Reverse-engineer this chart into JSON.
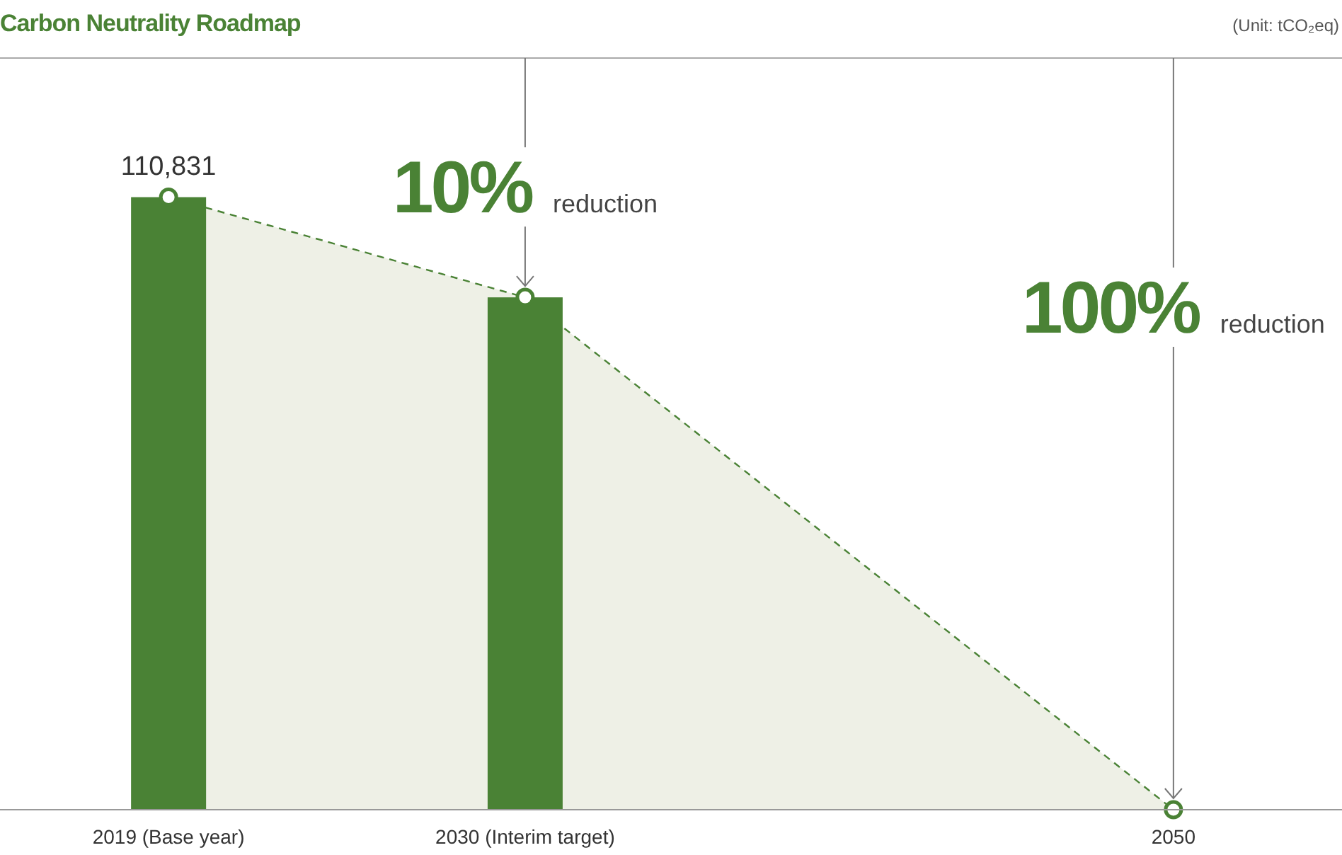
{
  "chart_data": {
    "type": "bar",
    "title": "Carbon Neutrality Roadmap",
    "subtitle": "(Unit: tCO₂eq)",
    "x": [
      2019,
      2030,
      2050
    ],
    "xlim": [
      2013.8,
      2055.2
    ],
    "xticks": [
      {
        "value": 2019,
        "label": "2019 (Base year)"
      },
      {
        "value": 2030,
        "label": "2030 (Interim target)"
      },
      {
        "value": 2050,
        "label": "2050"
      }
    ],
    "ylim": [
      0,
      136000
    ],
    "tick_labels": "x",
    "series": [
      {
        "color": "#4a8235",
        "values": [
          110831,
          92700,
          null
        ],
        "value_labels": [
          "110,831",
          null,
          null
        ]
      },
      {
        "type": "area",
        "color": "#4a8235",
        "values": [
          110831,
          92700,
          0
        ],
        "line_style": "dashed",
        "marker": "circle"
      }
    ],
    "annotations": [
      "10% reduction",
      "100% reduction"
    ]
  }
}
